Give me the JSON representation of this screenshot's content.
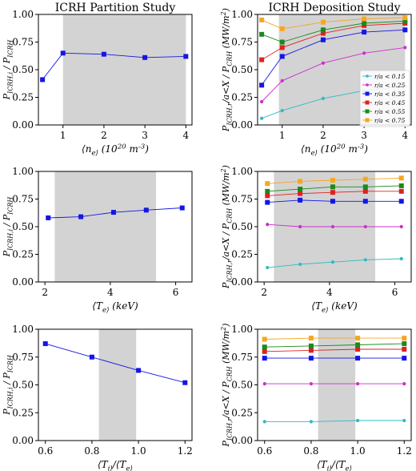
{
  "chart_data": [
    {
      "id": "p1",
      "type": "line",
      "title": "ICRH Partition Study",
      "xlabel": "⟨n_e⟩ (10^20 m^-3)",
      "ylabel": "P_ICRH,i / P_ICRH",
      "xlim": [
        0.4,
        4.15
      ],
      "ylim": [
        0,
        1.0
      ],
      "xticks": [
        1,
        2,
        3,
        4
      ],
      "xticklabels": [
        "1",
        "2",
        "3",
        "4"
      ],
      "yticks": [
        0,
        0.25,
        0.5,
        0.75,
        1.0
      ],
      "yticklabels": [
        "0.00",
        "0.25",
        "0.50",
        "0.75",
        "1.00"
      ],
      "shade": [
        1.0,
        4.0
      ],
      "series": [
        {
          "color": "#1515e6",
          "marker": "square",
          "x": [
            0.5,
            1.0,
            2.0,
            3.0,
            4.0
          ],
          "y": [
            0.41,
            0.65,
            0.64,
            0.61,
            0.62
          ]
        }
      ]
    },
    {
      "id": "p2",
      "type": "line",
      "title": "ICRH Deposition Study",
      "xlabel": "⟨n_e⟩ (10^20 m^-3)",
      "ylabel": "P_ICRH,r/a<X / P_CRH (MW/m^2)",
      "xlim": [
        0.4,
        4.15
      ],
      "ylim": [
        0,
        1.0
      ],
      "xticks": [
        1,
        2,
        3,
        4
      ],
      "xticklabels": [
        "1",
        "2",
        "3",
        "4"
      ],
      "yticks": [
        0,
        0.25,
        0.5,
        0.75,
        1.0
      ],
      "yticklabels": [
        "0.00",
        "0.25",
        "0.50",
        "0.75",
        "1.00"
      ],
      "shade": [
        0.92,
        4.0
      ],
      "legend": {
        "placement": "right-middle"
      },
      "series": [
        {
          "name": "r/a < 0.15",
          "color": "#2bbcc4",
          "marker": "circle",
          "x": [
            0.5,
            1.0,
            2.0,
            3.0,
            4.0
          ],
          "y": [
            0.06,
            0.13,
            0.24,
            0.31,
            0.35
          ]
        },
        {
          "name": "r/a < 0.25",
          "color": "#cc2fcc",
          "marker": "circle",
          "x": [
            0.5,
            1.0,
            2.0,
            3.0,
            4.0
          ],
          "y": [
            0.21,
            0.4,
            0.56,
            0.65,
            0.7
          ]
        },
        {
          "name": "r/a < 0.35",
          "color": "#1515e6",
          "marker": "square",
          "x": [
            0.5,
            1.0,
            2.0,
            3.0,
            4.0
          ],
          "y": [
            0.36,
            0.62,
            0.77,
            0.84,
            0.86
          ]
        },
        {
          "name": "r/a < 0.45",
          "color": "#dd2222",
          "marker": "square",
          "x": [
            0.5,
            1.0,
            2.0,
            3.0,
            4.0
          ],
          "y": [
            0.59,
            0.7,
            0.83,
            0.9,
            0.92
          ]
        },
        {
          "name": "r/a < 0.55",
          "color": "#1a8a1a",
          "marker": "square",
          "x": [
            0.5,
            1.0,
            2.0,
            3.0,
            4.0
          ],
          "y": [
            0.82,
            0.75,
            0.86,
            0.92,
            0.94
          ]
        },
        {
          "name": "r/a < 0.75",
          "color": "#f5a623",
          "marker": "square",
          "x": [
            0.5,
            1.0,
            2.0,
            3.0,
            4.0
          ],
          "y": [
            0.95,
            0.87,
            0.93,
            0.96,
            0.97
          ]
        }
      ]
    },
    {
      "id": "p3",
      "type": "line",
      "xlabel": "⟨T_e⟩ (keV)",
      "ylabel": "P_ICRH,i / P_ICRH",
      "xlim": [
        1.8,
        6.5
      ],
      "ylim": [
        0,
        1.0
      ],
      "xticks": [
        2,
        4,
        6
      ],
      "xticklabels": [
        "2",
        "4",
        "6"
      ],
      "yticks": [
        0,
        0.25,
        0.5,
        0.75,
        1.0
      ],
      "yticklabels": [
        "0.00",
        "0.25",
        "0.50",
        "0.75",
        "1.00"
      ],
      "shade": [
        2.3,
        5.4
      ],
      "series": [
        {
          "color": "#1515e6",
          "marker": "square",
          "x": [
            2.1,
            3.1,
            4.1,
            5.1,
            6.2
          ],
          "y": [
            0.58,
            0.59,
            0.63,
            0.65,
            0.67
          ]
        }
      ]
    },
    {
      "id": "p4",
      "type": "line",
      "xlabel": "⟨T_e⟩ (keV)",
      "ylabel": "P_ICRH,r/a<X / P_CRH (MW/m^2)",
      "xlim": [
        1.8,
        6.5
      ],
      "ylim": [
        0,
        1.0
      ],
      "xticks": [
        2,
        4,
        6
      ],
      "xticklabels": [
        "2",
        "4",
        "6"
      ],
      "yticks": [
        0,
        0.25,
        0.5,
        0.75,
        1.0
      ],
      "yticklabels": [
        "0.00",
        "0.25",
        "0.50",
        "0.75",
        "1.00"
      ],
      "shade": [
        2.3,
        5.4
      ],
      "series": [
        {
          "color": "#2bbcc4",
          "marker": "circle",
          "x": [
            2.1,
            3.1,
            4.1,
            5.1,
            6.2
          ],
          "y": [
            0.13,
            0.16,
            0.18,
            0.2,
            0.21
          ]
        },
        {
          "color": "#cc2fcc",
          "marker": "circle",
          "x": [
            2.1,
            3.1,
            4.1,
            5.1,
            6.2
          ],
          "y": [
            0.52,
            0.5,
            0.5,
            0.5,
            0.5
          ]
        },
        {
          "color": "#1515e6",
          "marker": "square",
          "x": [
            2.1,
            3.1,
            4.1,
            5.1,
            6.2
          ],
          "y": [
            0.72,
            0.74,
            0.73,
            0.73,
            0.73
          ]
        },
        {
          "color": "#dd2222",
          "marker": "square",
          "x": [
            2.1,
            3.1,
            4.1,
            5.1,
            6.2
          ],
          "y": [
            0.78,
            0.8,
            0.81,
            0.82,
            0.82
          ]
        },
        {
          "color": "#1a8a1a",
          "marker": "square",
          "x": [
            2.1,
            3.1,
            4.1,
            5.1,
            6.2
          ],
          "y": [
            0.82,
            0.84,
            0.86,
            0.86,
            0.87
          ]
        },
        {
          "color": "#f5a623",
          "marker": "square",
          "x": [
            2.1,
            3.1,
            4.1,
            5.1,
            6.2
          ],
          "y": [
            0.89,
            0.91,
            0.92,
            0.93,
            0.94
          ]
        }
      ]
    },
    {
      "id": "p5",
      "type": "line",
      "xlabel": "⟨T_i⟩/⟨T_e⟩",
      "ylabel": "P_ICRH,i / P_ICRH",
      "xlim": [
        0.57,
        1.23
      ],
      "ylim": [
        0,
        1.0
      ],
      "xticks": [
        0.6,
        0.8,
        1.0,
        1.2
      ],
      "xticklabels": [
        "0.6",
        "0.8",
        "1.0",
        "1.2"
      ],
      "yticks": [
        0,
        0.25,
        0.5,
        0.75,
        1.0
      ],
      "yticklabels": [
        "0.00",
        "0.25",
        "0.50",
        "0.75",
        "1.00"
      ],
      "shade": [
        0.83,
        0.99
      ],
      "series": [
        {
          "color": "#1515e6",
          "marker": "square",
          "x": [
            0.6,
            0.8,
            1.0,
            1.2
          ],
          "y": [
            0.87,
            0.75,
            0.63,
            0.52
          ]
        }
      ]
    },
    {
      "id": "p6",
      "type": "line",
      "xlabel": "⟨T_i⟩/⟨T_e⟩",
      "ylabel": "P_ICRH,r/a<X / P_CRH (MW/m^2)",
      "xlim": [
        0.57,
        1.23
      ],
      "ylim": [
        0,
        1.0
      ],
      "xticks": [
        0.6,
        0.8,
        1.0,
        1.2
      ],
      "xticklabels": [
        "0.6",
        "0.8",
        "1.0",
        "1.2"
      ],
      "yticks": [
        0,
        0.25,
        0.5,
        0.75,
        1.0
      ],
      "yticklabels": [
        "0.00",
        "0.25",
        "0.50",
        "0.75",
        "1.00"
      ],
      "shade": [
        0.83,
        0.99
      ],
      "series": [
        {
          "color": "#2bbcc4",
          "marker": "circle",
          "x": [
            0.6,
            0.8,
            1.0,
            1.2
          ],
          "y": [
            0.17,
            0.17,
            0.18,
            0.18
          ]
        },
        {
          "color": "#cc2fcc",
          "marker": "circle",
          "x": [
            0.6,
            0.8,
            1.0,
            1.2
          ],
          "y": [
            0.51,
            0.51,
            0.51,
            0.51
          ]
        },
        {
          "color": "#1515e6",
          "marker": "square",
          "x": [
            0.6,
            0.8,
            1.0,
            1.2
          ],
          "y": [
            0.74,
            0.74,
            0.74,
            0.74
          ]
        },
        {
          "color": "#dd2222",
          "marker": "square",
          "x": [
            0.6,
            0.8,
            1.0,
            1.2
          ],
          "y": [
            0.8,
            0.81,
            0.82,
            0.82
          ]
        },
        {
          "color": "#1a8a1a",
          "marker": "square",
          "x": [
            0.6,
            0.8,
            1.0,
            1.2
          ],
          "y": [
            0.84,
            0.85,
            0.86,
            0.87
          ]
        },
        {
          "color": "#f5a623",
          "marker": "square",
          "x": [
            0.6,
            0.8,
            1.0,
            1.2
          ],
          "y": [
            0.91,
            0.92,
            0.92,
            0.92
          ]
        }
      ]
    }
  ],
  "colors": {
    "shade": "#d3d3d3",
    "axis": "#000000"
  }
}
